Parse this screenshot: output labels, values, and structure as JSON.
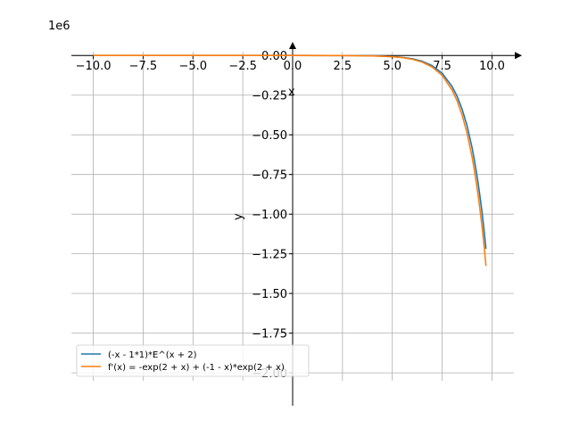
{
  "chart_data": {
    "type": "line",
    "offset_text": "1e6",
    "xlabel": "x",
    "ylabel": "y",
    "xlim": [
      -11.1,
      11.1
    ],
    "ylim": [
      -2.05,
      0.08
    ],
    "grid": true,
    "legend_position": "lower-left",
    "x_ticks": [
      -10.0,
      -7.5,
      -5.0,
      -2.5,
      0.0,
      2.5,
      5.0,
      7.5,
      10.0
    ],
    "x_tick_labels": [
      "−10.0",
      "−7.5",
      "−5.0",
      "−2.5",
      "0.0",
      "2.5",
      "5.0",
      "7.5",
      "10.0"
    ],
    "y_ticks": [
      0.0,
      -0.25,
      -0.5,
      -0.75,
      -1.0,
      -1.25,
      -1.5,
      -1.75,
      -2.0
    ],
    "y_tick_labels": [
      "0.00",
      "−0.25",
      "−0.50",
      "−0.75",
      "−1.00",
      "−1.25",
      "−1.50",
      "−1.75",
      "−2.00"
    ],
    "series": [
      {
        "name": "(-x - 1*1)*E^(x + 2)",
        "color": "#1f77b4",
        "x": [
          -10,
          -8,
          -6,
          -4,
          -2,
          0,
          2,
          3,
          4,
          5,
          5.5,
          6,
          6.5,
          7,
          7.5,
          8,
          8.25,
          8.5,
          8.75,
          9,
          9.1,
          9.2,
          9.3,
          9.4,
          9.5,
          9.6,
          9.7
        ],
        "y": [
          0,
          0,
          0,
          0,
          0,
          -7e-06,
          -0.00016,
          -0.00059,
          -0.002,
          -0.0066,
          -0.0117,
          -0.0207,
          -0.0364,
          -0.0639,
          -0.1118,
          -0.1953,
          -0.2568,
          -0.3374,
          -0.4429,
          -0.5806,
          -0.6463,
          -0.7191,
          -0.7999,
          -0.8893,
          -0.9883,
          -1.0981,
          -1.2196
        ]
      },
      {
        "name": "f'(x) = -exp(2 + x) + (-1 - x)*exp(2 + x)",
        "color": "#ff7f0e",
        "x": [
          -10,
          -8,
          -6,
          -4,
          -2,
          0,
          2,
          3,
          4,
          5,
          5.5,
          6,
          6.5,
          7,
          7.5,
          8,
          8.25,
          8.5,
          8.75,
          9,
          9.1,
          9.2,
          9.3,
          9.4,
          9.5,
          9.6,
          9.7
        ],
        "y": [
          0,
          0,
          0,
          0,
          0,
          -1.5e-05,
          -0.00022,
          -0.00074,
          -0.0025,
          -0.0077,
          -0.0135,
          -0.0238,
          -0.0416,
          -0.0724,
          -0.1258,
          -0.2179,
          -0.2854,
          -0.3741,
          -0.4891,
          -0.6387,
          -0.7101,
          -0.7887,
          -0.8757,
          -0.9719,
          -1.0783,
          -1.1958,
          -1.3259
        ]
      }
    ]
  }
}
